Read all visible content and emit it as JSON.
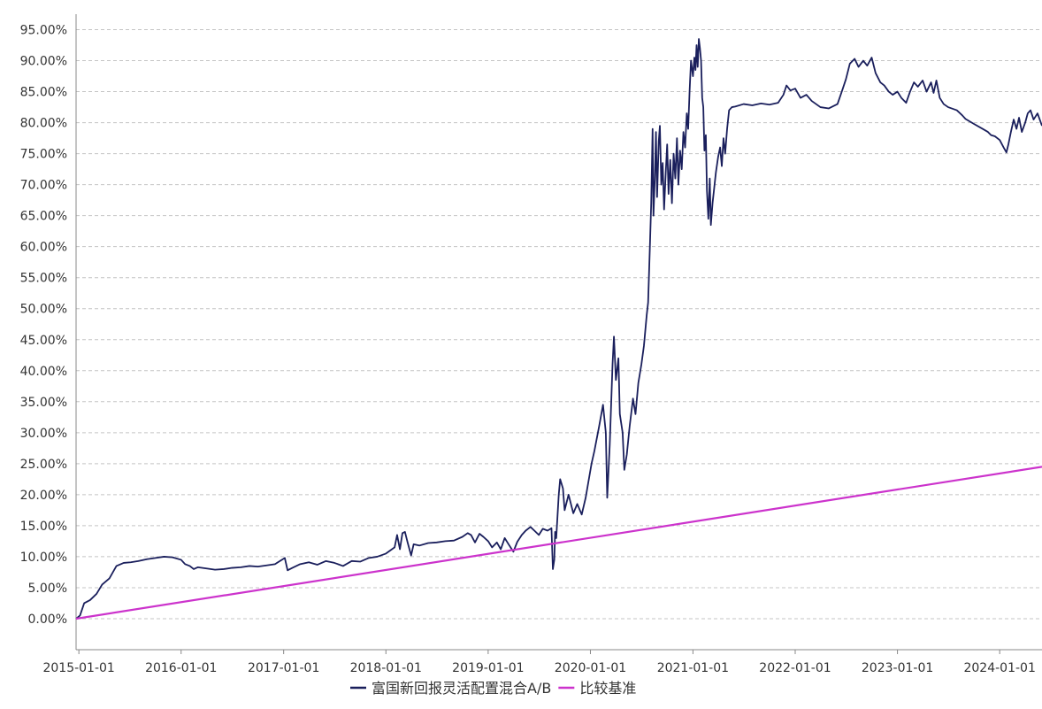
{
  "chart_data": {
    "type": "line",
    "title": "",
    "xlabel": "",
    "ylabel": "",
    "ylim": [
      -5,
      97.5
    ],
    "xlim": [
      "2014-12-22",
      "2024-05-31"
    ],
    "grid": {
      "horizontal": true,
      "vertical": false,
      "style": "dashed"
    },
    "legend_position": "bottom-center",
    "y_ticks": [
      "0.00%",
      "5.00%",
      "10.00%",
      "15.00%",
      "20.00%",
      "25.00%",
      "30.00%",
      "35.00%",
      "40.00%",
      "45.00%",
      "50.00%",
      "55.00%",
      "60.00%",
      "65.00%",
      "70.00%",
      "75.00%",
      "80.00%",
      "85.00%",
      "90.00%",
      "95.00%"
    ],
    "y_tick_values": [
      0,
      5,
      10,
      15,
      20,
      25,
      30,
      35,
      40,
      45,
      50,
      55,
      60,
      65,
      70,
      75,
      80,
      85,
      90,
      95
    ],
    "x_ticks": [
      "2015-01-01",
      "2016-01-01",
      "2017-01-01",
      "2018-01-01",
      "2019-01-01",
      "2020-01-01",
      "2021-01-01",
      "2022-01-01",
      "2023-01-01",
      "2024-01-01"
    ],
    "series": [
      {
        "name": "富国新回报灵活配置混合A/B",
        "color": "#1a1f5c",
        "points": [
          [
            "2014-12-22",
            0
          ],
          [
            "2015-01-05",
            0.5
          ],
          [
            "2015-01-20",
            2.5
          ],
          [
            "2015-02-10",
            3
          ],
          [
            "2015-03-05",
            4
          ],
          [
            "2015-03-25",
            5.5
          ],
          [
            "2015-04-20",
            6.5
          ],
          [
            "2015-05-15",
            8.5
          ],
          [
            "2015-06-10",
            9
          ],
          [
            "2015-07-05",
            9.1
          ],
          [
            "2015-08-01",
            9.3
          ],
          [
            "2015-09-01",
            9.6
          ],
          [
            "2015-10-01",
            9.8
          ],
          [
            "2015-11-01",
            10
          ],
          [
            "2015-12-01",
            9.9
          ],
          [
            "2016-01-01",
            9.5
          ],
          [
            "2016-01-15",
            8.8
          ],
          [
            "2016-02-01",
            8.5
          ],
          [
            "2016-02-15",
            8
          ],
          [
            "2016-03-01",
            8.3
          ],
          [
            "2016-04-01",
            8.1
          ],
          [
            "2016-05-01",
            7.9
          ],
          [
            "2016-06-01",
            8
          ],
          [
            "2016-07-01",
            8.2
          ],
          [
            "2016-08-01",
            8.3
          ],
          [
            "2016-09-01",
            8.5
          ],
          [
            "2016-10-01",
            8.4
          ],
          [
            "2016-11-01",
            8.6
          ],
          [
            "2016-12-01",
            8.8
          ],
          [
            "2017-01-05",
            9.8
          ],
          [
            "2017-01-15",
            7.8
          ],
          [
            "2017-02-01",
            8.2
          ],
          [
            "2017-03-01",
            8.8
          ],
          [
            "2017-04-01",
            9.1
          ],
          [
            "2017-05-01",
            8.7
          ],
          [
            "2017-06-01",
            9.3
          ],
          [
            "2017-07-01",
            9
          ],
          [
            "2017-08-01",
            8.5
          ],
          [
            "2017-09-01",
            9.3
          ],
          [
            "2017-10-01",
            9.2
          ],
          [
            "2017-11-01",
            9.8
          ],
          [
            "2017-12-01",
            10
          ],
          [
            "2018-01-01",
            10.5
          ],
          [
            "2018-02-01",
            11.5
          ],
          [
            "2018-02-10",
            13.5
          ],
          [
            "2018-02-20",
            11.2
          ],
          [
            "2018-03-01",
            13.8
          ],
          [
            "2018-03-10",
            14
          ],
          [
            "2018-03-20",
            12.2
          ],
          [
            "2018-04-01",
            10.2
          ],
          [
            "2018-04-10",
            12
          ],
          [
            "2018-05-01",
            11.8
          ],
          [
            "2018-06-01",
            12.2
          ],
          [
            "2018-07-01",
            12.3
          ],
          [
            "2018-08-01",
            12.5
          ],
          [
            "2018-09-01",
            12.6
          ],
          [
            "2018-10-01",
            13.2
          ],
          [
            "2018-10-20",
            13.8
          ],
          [
            "2018-11-01",
            13.5
          ],
          [
            "2018-11-15",
            12.3
          ],
          [
            "2018-12-01",
            13.7
          ],
          [
            "2018-12-15",
            13.2
          ],
          [
            "2019-01-01",
            12.5
          ],
          [
            "2019-01-15",
            11.5
          ],
          [
            "2019-02-01",
            12.3
          ],
          [
            "2019-02-15",
            11.2
          ],
          [
            "2019-03-01",
            13
          ],
          [
            "2019-03-15",
            12
          ],
          [
            "2019-04-01",
            10.8
          ],
          [
            "2019-04-15",
            12.4
          ],
          [
            "2019-05-01",
            13.5
          ],
          [
            "2019-05-15",
            14.2
          ],
          [
            "2019-06-01",
            14.8
          ],
          [
            "2019-06-15",
            14.2
          ],
          [
            "2019-07-01",
            13.5
          ],
          [
            "2019-07-15",
            14.5
          ],
          [
            "2019-08-01",
            14.2
          ],
          [
            "2019-08-15",
            14.6
          ],
          [
            "2019-08-20",
            8
          ],
          [
            "2019-08-25",
            9.5
          ],
          [
            "2019-08-28",
            14
          ],
          [
            "2019-09-01",
            13
          ],
          [
            "2019-09-10",
            20
          ],
          [
            "2019-09-15",
            22.5
          ],
          [
            "2019-09-25",
            21
          ],
          [
            "2019-10-01",
            17.5
          ],
          [
            "2019-10-15",
            20
          ],
          [
            "2019-11-01",
            17
          ],
          [
            "2019-11-15",
            18.5
          ],
          [
            "2019-12-01",
            16.8
          ],
          [
            "2019-12-15",
            19.5
          ],
          [
            "2020-01-05",
            25
          ],
          [
            "2020-01-15",
            27
          ],
          [
            "2020-02-01",
            31
          ],
          [
            "2020-02-15",
            34.5
          ],
          [
            "2020-02-25",
            30
          ],
          [
            "2020-03-01",
            19.5
          ],
          [
            "2020-03-10",
            28
          ],
          [
            "2020-03-20",
            41
          ],
          [
            "2020-03-25",
            45.5
          ],
          [
            "2020-04-01",
            38.5
          ],
          [
            "2020-04-10",
            42
          ],
          [
            "2020-04-15",
            33
          ],
          [
            "2020-04-25",
            30
          ],
          [
            "2020-05-01",
            24
          ],
          [
            "2020-05-10",
            26.5
          ],
          [
            "2020-05-20",
            31
          ],
          [
            "2020-06-01",
            35.5
          ],
          [
            "2020-06-10",
            33
          ],
          [
            "2020-06-20",
            38
          ],
          [
            "2020-07-01",
            41
          ],
          [
            "2020-07-10",
            44
          ],
          [
            "2020-07-20",
            49
          ],
          [
            "2020-07-25",
            51
          ],
          [
            "2020-08-01",
            61
          ],
          [
            "2020-08-05",
            67
          ],
          [
            "2020-08-10",
            79
          ],
          [
            "2020-08-13",
            65
          ],
          [
            "2020-08-18",
            71
          ],
          [
            "2020-08-22",
            78.5
          ],
          [
            "2020-08-26",
            68
          ],
          [
            "2020-09-01",
            77
          ],
          [
            "2020-09-05",
            79.5
          ],
          [
            "2020-09-10",
            70
          ],
          [
            "2020-09-15",
            73.5
          ],
          [
            "2020-09-20",
            66
          ],
          [
            "2020-09-26",
            72
          ],
          [
            "2020-10-01",
            76.5
          ],
          [
            "2020-10-06",
            68.5
          ],
          [
            "2020-10-12",
            74
          ],
          [
            "2020-10-18",
            67
          ],
          [
            "2020-10-24",
            75
          ],
          [
            "2020-10-30",
            71
          ],
          [
            "2020-11-05",
            77.5
          ],
          [
            "2020-11-10",
            70
          ],
          [
            "2020-11-16",
            75.5
          ],
          [
            "2020-11-22",
            72.5
          ],
          [
            "2020-11-28",
            78.5
          ],
          [
            "2020-12-04",
            76
          ],
          [
            "2020-12-10",
            81.5
          ],
          [
            "2020-12-15",
            79
          ],
          [
            "2020-12-20",
            85
          ],
          [
            "2020-12-25",
            90
          ],
          [
            "2021-01-01",
            87.5
          ],
          [
            "2021-01-06",
            90.5
          ],
          [
            "2021-01-10",
            88.5
          ],
          [
            "2021-01-14",
            92.5
          ],
          [
            "2021-01-18",
            89
          ],
          [
            "2021-01-22",
            93.5
          ],
          [
            "2021-01-26",
            92
          ],
          [
            "2021-01-30",
            90
          ],
          [
            "2021-02-03",
            84
          ],
          [
            "2021-02-07",
            82.5
          ],
          [
            "2021-02-11",
            75.5
          ],
          [
            "2021-02-16",
            78
          ],
          [
            "2021-02-20",
            69
          ],
          [
            "2021-02-25",
            64.5
          ],
          [
            "2021-03-02",
            71
          ],
          [
            "2021-03-06",
            63.5
          ],
          [
            "2021-03-12",
            67
          ],
          [
            "2021-03-18",
            69.5
          ],
          [
            "2021-03-24",
            72
          ],
          [
            "2021-04-01",
            74.5
          ],
          [
            "2021-04-08",
            76
          ],
          [
            "2021-04-14",
            73
          ],
          [
            "2021-04-20",
            77.5
          ],
          [
            "2021-04-26",
            75
          ],
          [
            "2021-05-03",
            79
          ],
          [
            "2021-05-10",
            82
          ],
          [
            "2021-05-20",
            82.5
          ],
          [
            "2021-06-01",
            82.6
          ],
          [
            "2021-07-01",
            83
          ],
          [
            "2021-08-01",
            82.8
          ],
          [
            "2021-09-01",
            83.1
          ],
          [
            "2021-10-01",
            82.9
          ],
          [
            "2021-11-01",
            83.2
          ],
          [
            "2021-11-20",
            84.5
          ],
          [
            "2021-12-01",
            86
          ],
          [
            "2021-12-15",
            85.2
          ],
          [
            "2022-01-01",
            85.5
          ],
          [
            "2022-01-20",
            84
          ],
          [
            "2022-02-10",
            84.5
          ],
          [
            "2022-03-01",
            83.5
          ],
          [
            "2022-04-01",
            82.5
          ],
          [
            "2022-05-01",
            82.3
          ],
          [
            "2022-06-01",
            83
          ],
          [
            "2022-06-20",
            85.5
          ],
          [
            "2022-07-01",
            87
          ],
          [
            "2022-07-15",
            89.5
          ],
          [
            "2022-08-01",
            90.3
          ],
          [
            "2022-08-15",
            89
          ],
          [
            "2022-09-01",
            90
          ],
          [
            "2022-09-15",
            89.2
          ],
          [
            "2022-10-01",
            90.5
          ],
          [
            "2022-10-15",
            88
          ],
          [
            "2022-11-01",
            86.5
          ],
          [
            "2022-11-15",
            86
          ],
          [
            "2022-12-01",
            85
          ],
          [
            "2022-12-15",
            84.5
          ],
          [
            "2023-01-01",
            85
          ],
          [
            "2023-01-15",
            84
          ],
          [
            "2023-02-01",
            83.2
          ],
          [
            "2023-02-15",
            85
          ],
          [
            "2023-03-01",
            86.5
          ],
          [
            "2023-03-15",
            85.8
          ],
          [
            "2023-04-01",
            86.8
          ],
          [
            "2023-04-15",
            85
          ],
          [
            "2023-05-01",
            86.5
          ],
          [
            "2023-05-10",
            84.8
          ],
          [
            "2023-05-20",
            86.8
          ],
          [
            "2023-06-01",
            84
          ],
          [
            "2023-06-15",
            83
          ],
          [
            "2023-07-01",
            82.5
          ],
          [
            "2023-08-01",
            82
          ],
          [
            "2023-08-20",
            81.2
          ],
          [
            "2023-09-01",
            80.6
          ],
          [
            "2023-10-01",
            79.8
          ],
          [
            "2023-11-01",
            79
          ],
          [
            "2023-11-20",
            78.5
          ],
          [
            "2023-12-01",
            78
          ],
          [
            "2023-12-15",
            77.8
          ],
          [
            "2024-01-01",
            77.2
          ],
          [
            "2024-01-15",
            76
          ],
          [
            "2024-01-25",
            75.2
          ],
          [
            "2024-02-01",
            76.5
          ],
          [
            "2024-02-10",
            78.5
          ],
          [
            "2024-02-20",
            80.5
          ],
          [
            "2024-03-01",
            79
          ],
          [
            "2024-03-10",
            80.8
          ],
          [
            "2024-03-20",
            78.5
          ],
          [
            "2024-04-01",
            80
          ],
          [
            "2024-04-10",
            81.5
          ],
          [
            "2024-04-20",
            82
          ],
          [
            "2024-05-01",
            80.5
          ],
          [
            "2024-05-15",
            81.5
          ],
          [
            "2024-05-31",
            79.5
          ]
        ]
      },
      {
        "name": "比较基准",
        "color": "#cc33cc",
        "points": [
          [
            "2014-12-22",
            0
          ],
          [
            "2024-05-31",
            24.5
          ]
        ]
      }
    ]
  }
}
